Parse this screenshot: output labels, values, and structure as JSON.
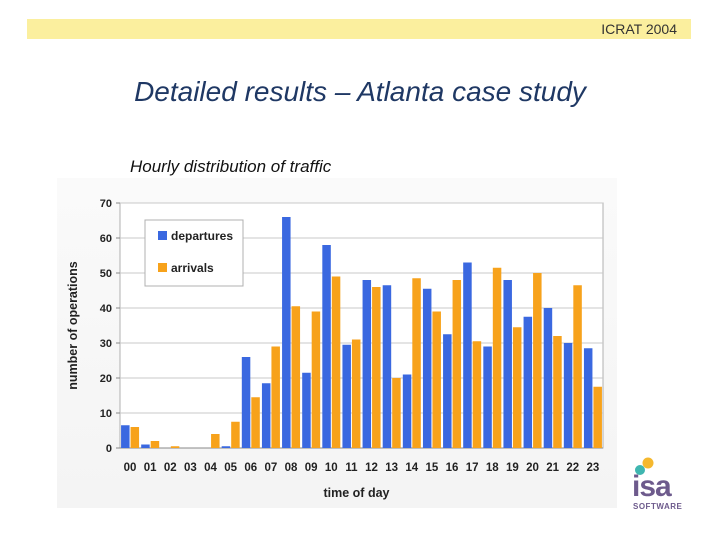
{
  "header": {
    "conference": "ICRAT 2004"
  },
  "slide": {
    "title": "Detailed results – Atlanta case study"
  },
  "logo": {
    "text": "isa",
    "subtext": "SOFTWARE"
  },
  "colors": {
    "departures": "#3a68e0",
    "arrivals": "#f7a21b",
    "header_band": "#fbef9e",
    "title": "#1f3864"
  },
  "chart_data": {
    "type": "bar",
    "title": "Hourly distribution of traffic",
    "xlabel": "time of day",
    "ylabel": "number of operations",
    "categories": [
      "00",
      "01",
      "02",
      "03",
      "04",
      "05",
      "06",
      "07",
      "08",
      "09",
      "10",
      "11",
      "12",
      "13",
      "14",
      "15",
      "16",
      "17",
      "18",
      "19",
      "20",
      "21",
      "22",
      "23"
    ],
    "series": [
      {
        "name": "departures",
        "values": [
          6.5,
          1,
          0,
          0,
          0,
          0.5,
          26,
          18.5,
          66,
          21.5,
          58,
          29.5,
          48,
          46.5,
          21,
          45.5,
          32.5,
          53,
          29,
          48,
          37.5,
          40,
          30,
          28.5
        ]
      },
      {
        "name": "arrivals",
        "values": [
          6,
          2,
          0.5,
          0,
          4,
          7.5,
          14.5,
          29,
          40.5,
          39,
          49,
          31,
          46,
          20,
          48.5,
          39,
          48,
          30.5,
          51.5,
          34.5,
          50,
          32,
          46.5,
          17.5
        ]
      }
    ],
    "ylim": [
      0,
      70
    ],
    "yticks": [
      0,
      10,
      20,
      30,
      40,
      50,
      60,
      70
    ],
    "grid": true,
    "legend": "top-left"
  }
}
